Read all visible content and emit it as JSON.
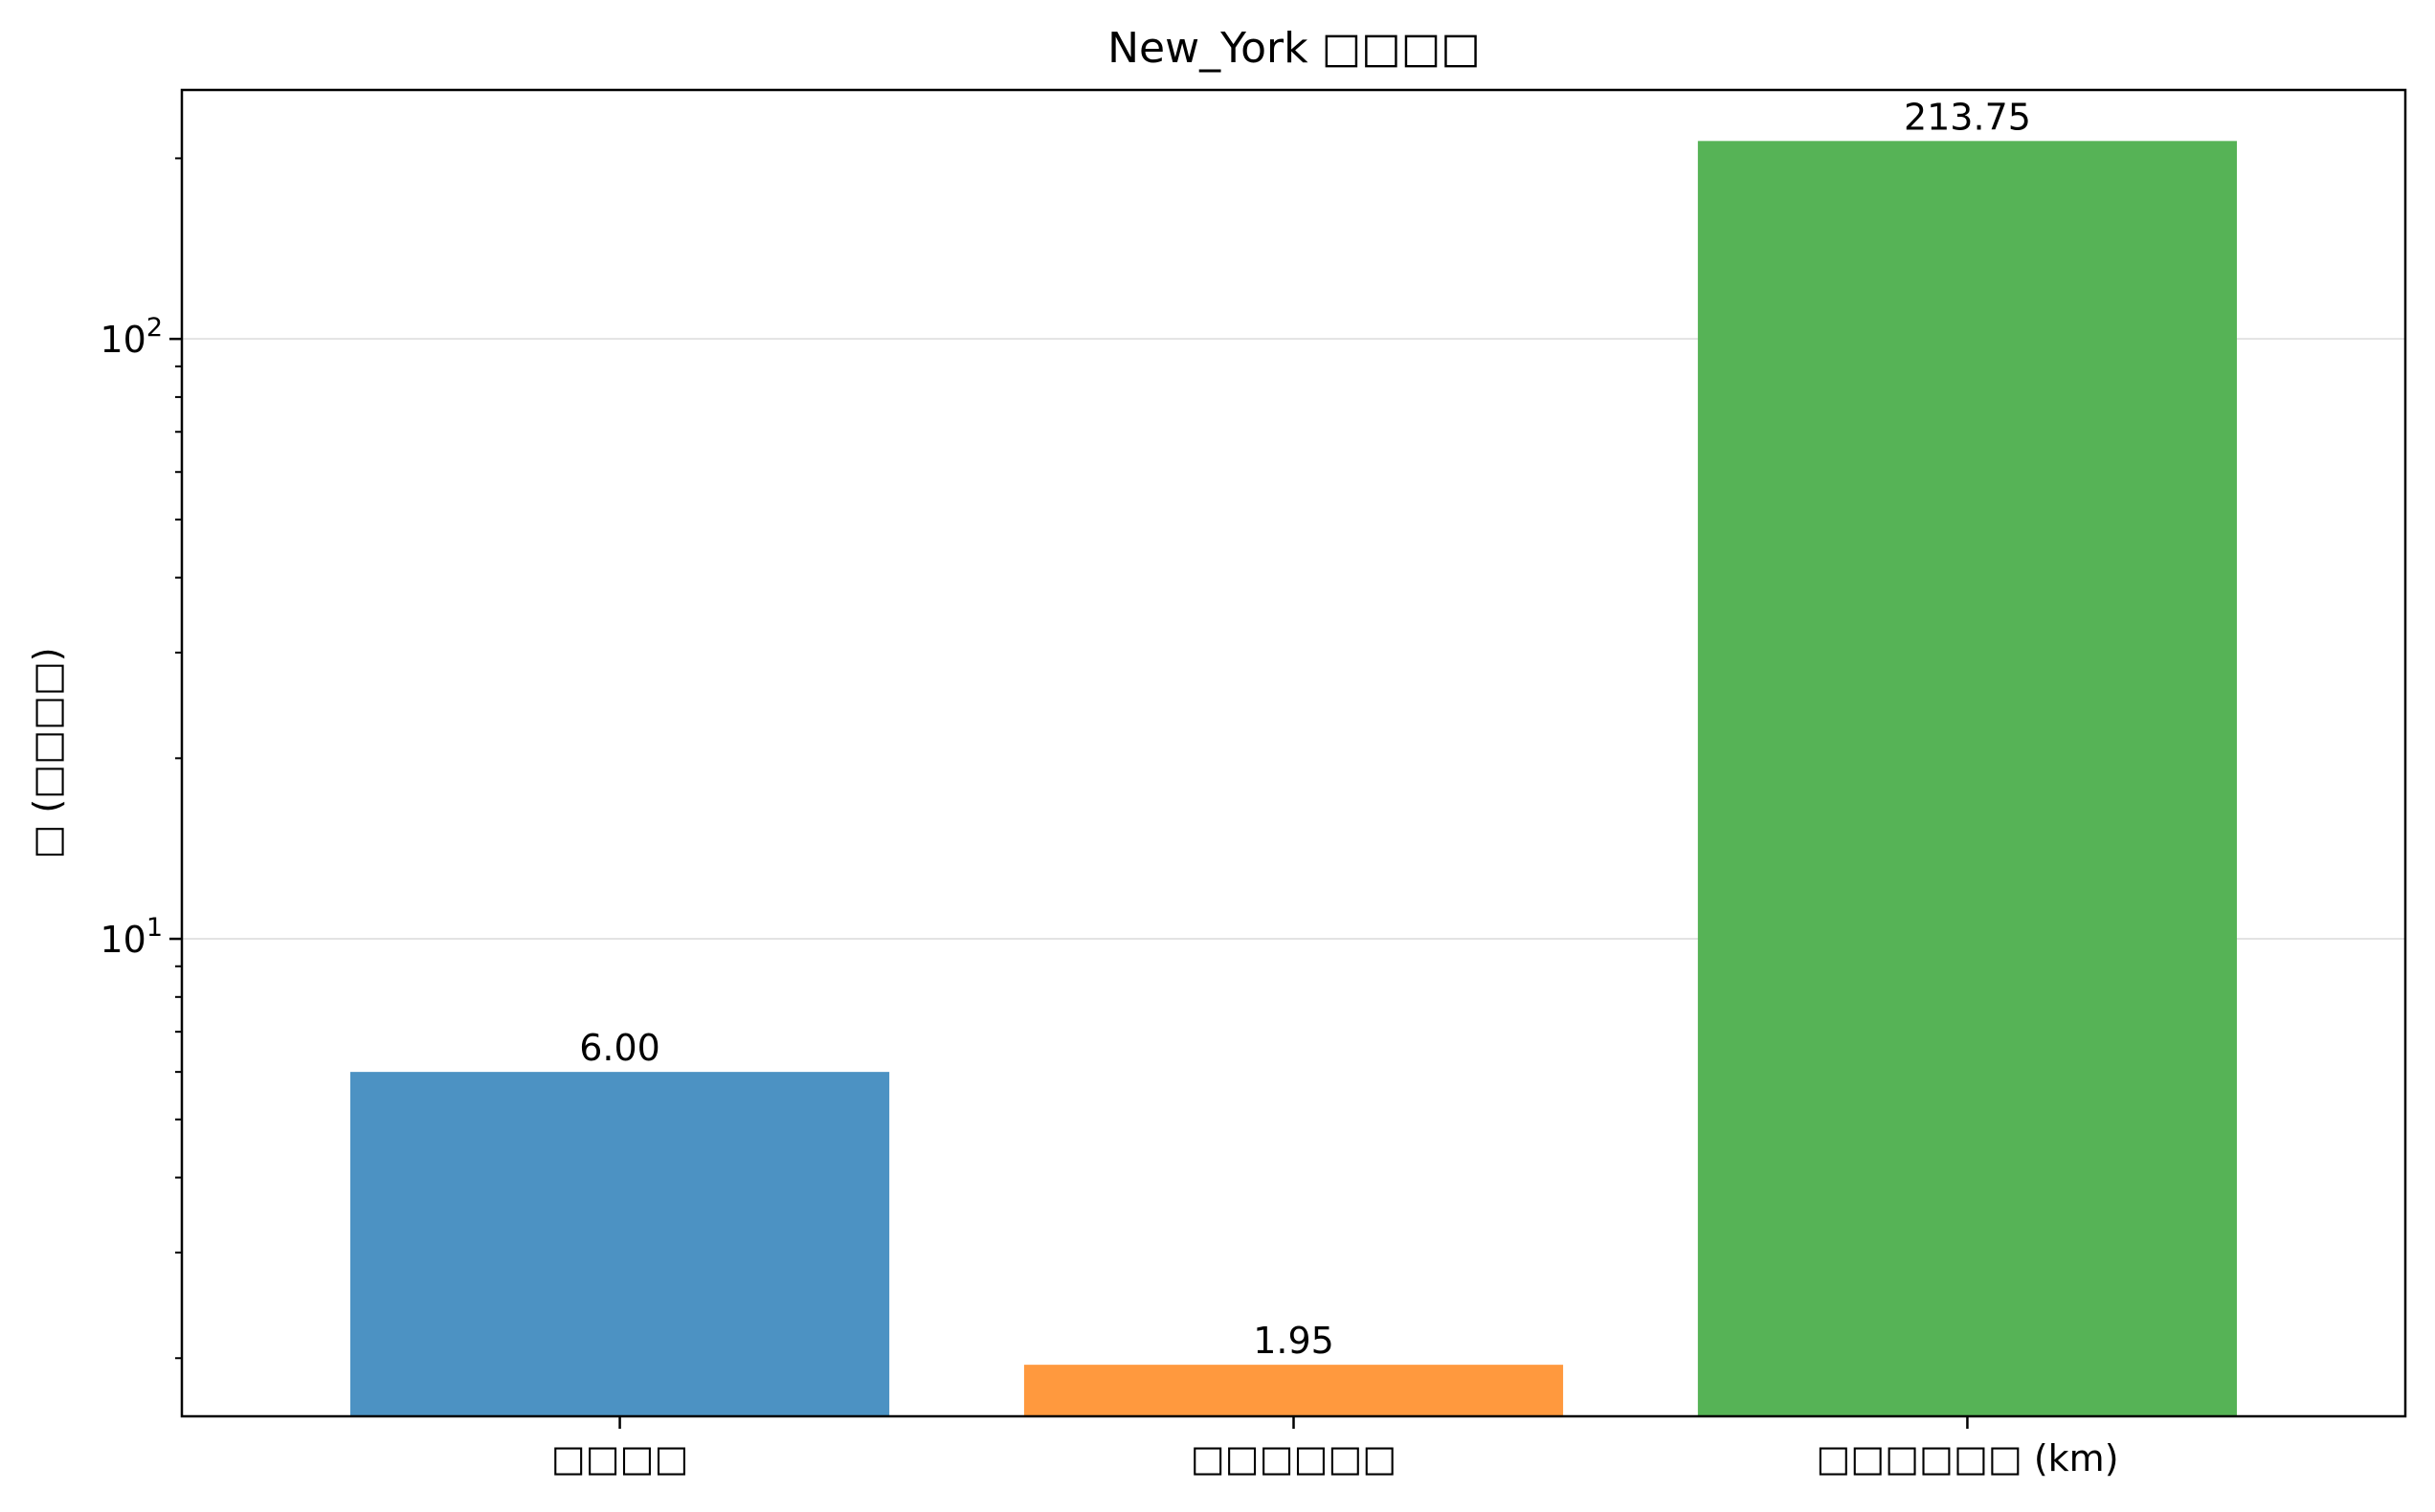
{
  "chart_data": {
    "type": "bar",
    "title": "New_York □□□□",
    "ylabel": "□ (□□□□)",
    "xlabel": "",
    "yscale": "log",
    "ylim": [
      1.6,
      260
    ],
    "grid": "y-major",
    "categories": [
      "□□□□",
      "□□□□□□",
      "□□□□□□ (km)"
    ],
    "values": [
      6.0,
      1.95,
      213.75
    ],
    "value_labels": [
      "6.00",
      "1.95",
      "213.75"
    ],
    "colors": [
      "#4c92c3",
      "#ff993e",
      "#56b356"
    ],
    "yticks": [
      {
        "value": 10,
        "base": "10",
        "exp": "1"
      },
      {
        "value": 100,
        "base": "10",
        "exp": "2"
      }
    ]
  }
}
